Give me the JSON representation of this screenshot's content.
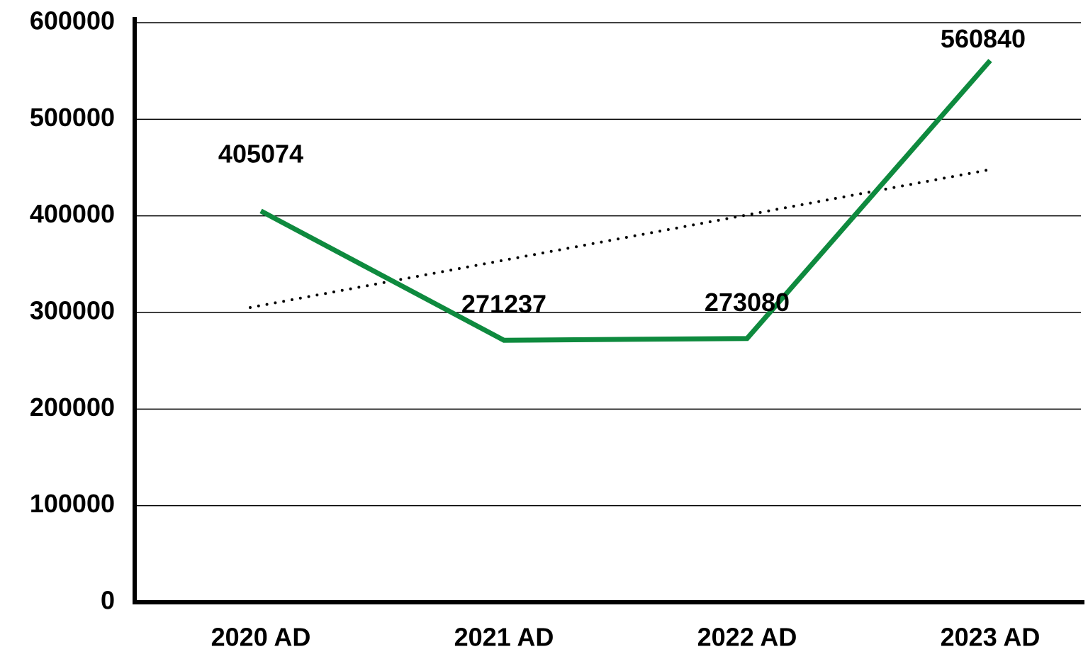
{
  "chart_data": {
    "type": "line",
    "categories": [
      "2020 AD",
      "2021 AD",
      "2022 AD",
      "2023 AD"
    ],
    "series": [
      {
        "name": null,
        "color": "#0e8a3e",
        "values": [
          405074,
          271237,
          273080,
          560840
        ]
      }
    ],
    "ylim": [
      0,
      600000
    ],
    "yticks": [
      0,
      100000,
      200000,
      300000,
      400000,
      500000,
      600000
    ],
    "grid": true,
    "trendline": "linear",
    "data_labels": true
  }
}
